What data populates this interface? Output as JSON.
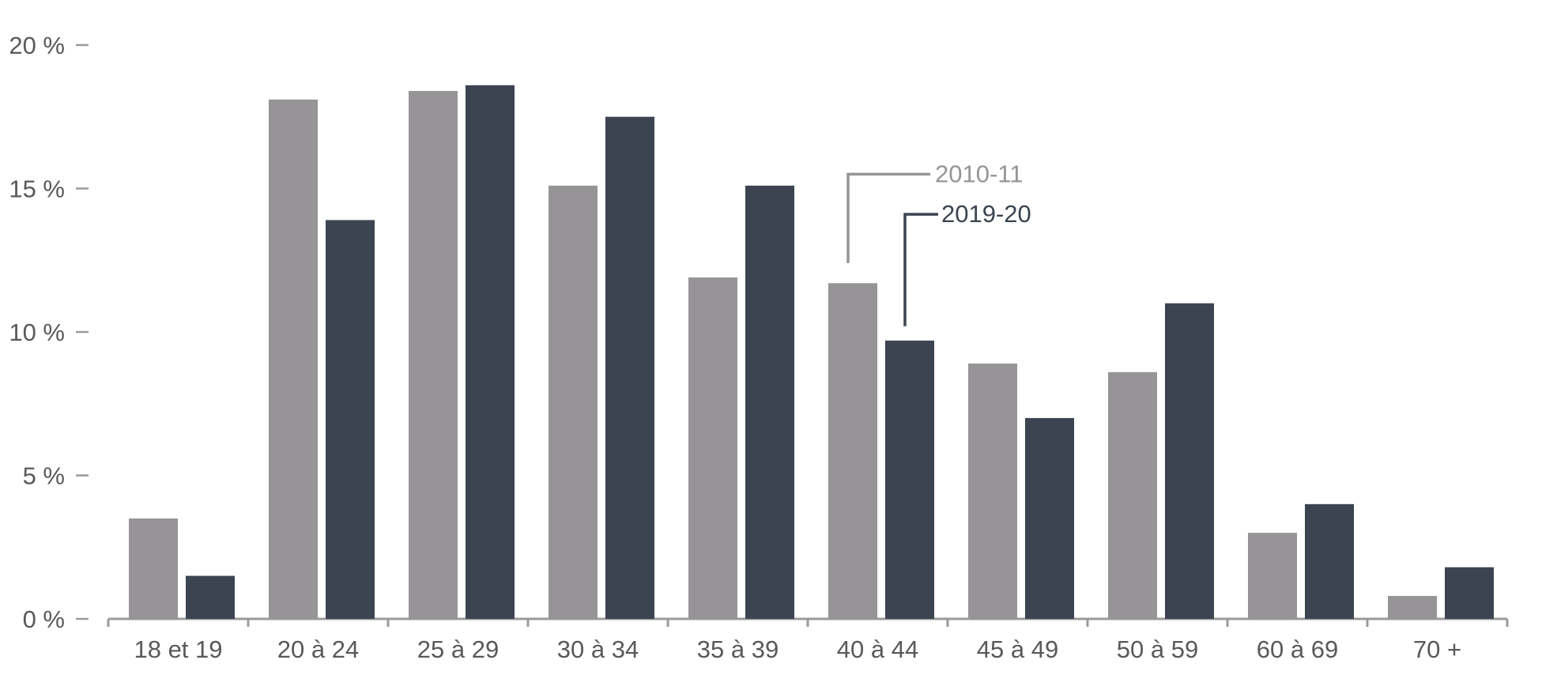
{
  "chart_data": {
    "type": "bar",
    "title": "",
    "xlabel": "",
    "ylabel": "",
    "categories": [
      "18 et 19",
      "20 à 24",
      "25 à 29",
      "30 à 34",
      "35 à 39",
      "40 à 44",
      "45 à 49",
      "50 à 59",
      "60 à 69",
      "70 +"
    ],
    "series": [
      {
        "name": "2010-11",
        "color": "#969496",
        "values": [
          3.5,
          18.1,
          18.4,
          15.1,
          11.9,
          11.7,
          8.9,
          8.6,
          3.0,
          0.8
        ]
      },
      {
        "name": "2019-20",
        "color": "#3b4450",
        "values": [
          1.5,
          13.9,
          18.6,
          17.5,
          15.1,
          9.7,
          7.0,
          11.0,
          4.0,
          1.8
        ]
      }
    ],
    "ylim": [
      0,
      20
    ],
    "yticks": [
      0,
      5,
      10,
      15,
      20
    ],
    "ytick_labels": [
      "0 %",
      "5 %",
      "10 %",
      "15 %",
      "20 %"
    ],
    "grid": false,
    "legend": "inline callout labels near 40 à 44",
    "axis_color": "#9a9a9a",
    "text_color": "#595959"
  }
}
